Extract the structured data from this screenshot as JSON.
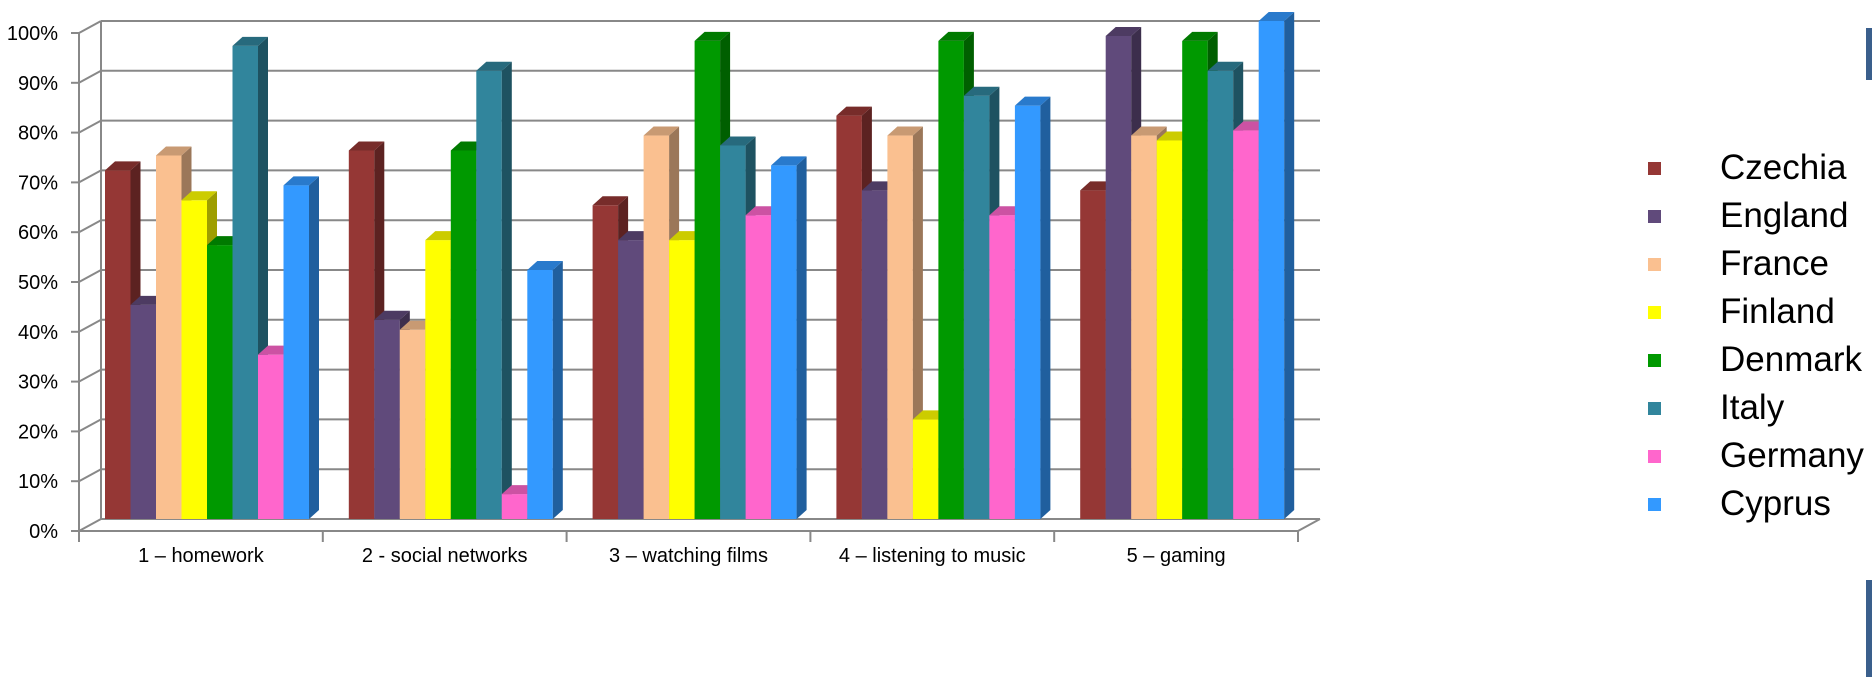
{
  "chart_data": {
    "type": "bar",
    "style": "3d-clustered-column",
    "categories": [
      "1 – homework",
      "2 - social networks",
      "3 – watching films",
      "4 – listening to music",
      "5 – gaming"
    ],
    "ylim": [
      0,
      100
    ],
    "y_ticks": [
      "0%",
      "10%",
      "20%",
      "30%",
      "40%",
      "50%",
      "60%",
      "70%",
      "80%",
      "90%",
      "100%"
    ],
    "grid": true,
    "legend_position": "right",
    "series": [
      {
        "name": "Czechia",
        "color": "#953735",
        "values": [
          70,
          74,
          63,
          81,
          66
        ]
      },
      {
        "name": "England",
        "color": "#604a7b",
        "values": [
          43,
          40,
          56,
          66,
          97
        ]
      },
      {
        "name": "France",
        "color": "#fac090",
        "values": [
          73,
          38,
          77,
          77,
          77
        ]
      },
      {
        "name": "Finland",
        "color": "#ffff00",
        "values": [
          64,
          56,
          56,
          20,
          76
        ]
      },
      {
        "name": "Denmark",
        "color": "#009900",
        "values": [
          55,
          74,
          96,
          96,
          96
        ]
      },
      {
        "name": "Italy",
        "color": "#31859c",
        "values": [
          95,
          90,
          75,
          85,
          90
        ]
      },
      {
        "name": "Germany",
        "color": "#ff66cc",
        "values": [
          33,
          5,
          61,
          61,
          78
        ]
      },
      {
        "name": "Cyprus",
        "color": "#3399ff",
        "values": [
          67,
          50,
          71,
          83,
          100
        ]
      }
    ]
  }
}
